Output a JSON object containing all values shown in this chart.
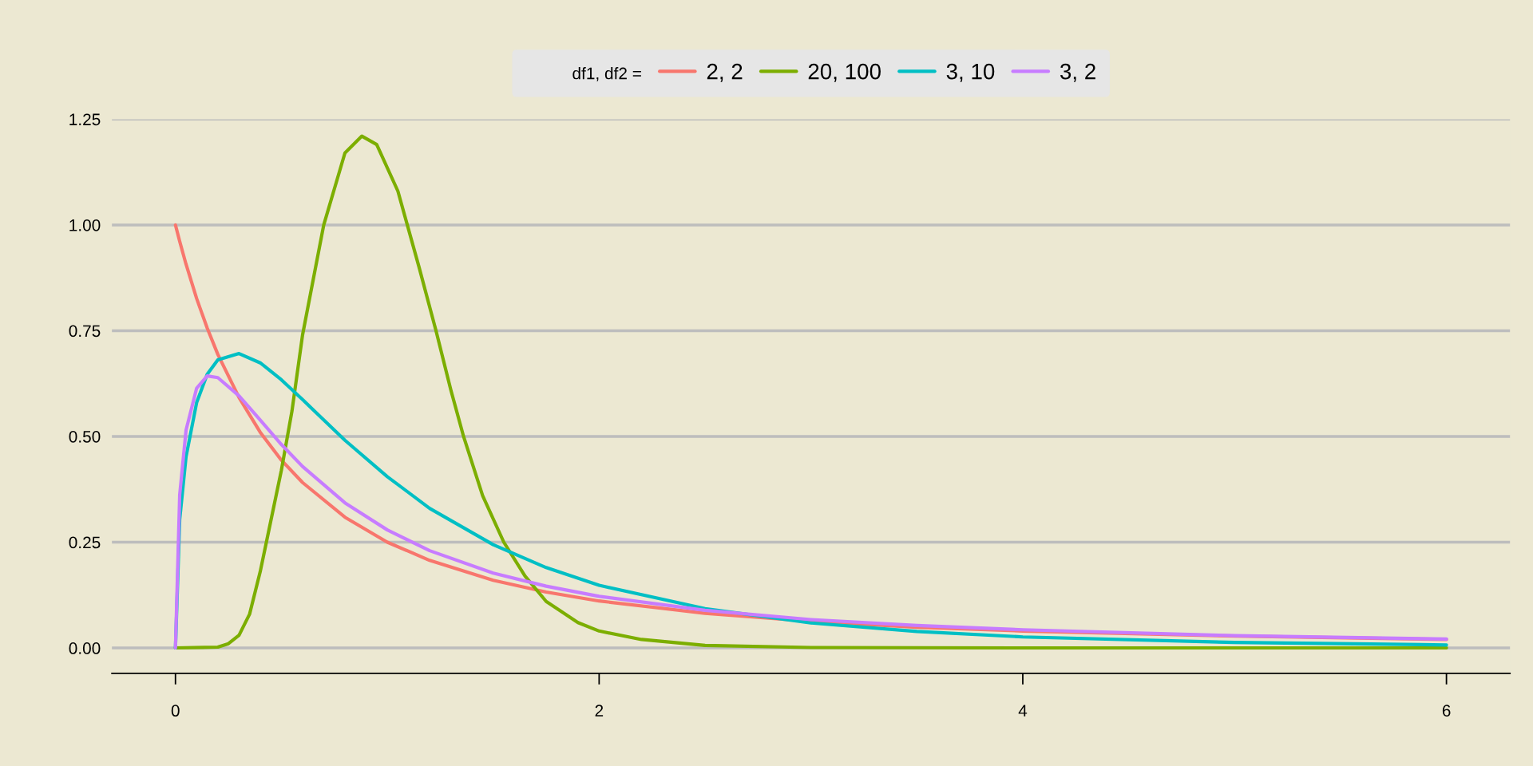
{
  "chart_data": {
    "type": "line",
    "legend_title": "df1, df2 =",
    "legend": "top",
    "grid": "y",
    "xlim": [
      -0.3,
      6.3
    ],
    "xticks": [
      0,
      2,
      4,
      6
    ],
    "ylim": [
      -0.06,
      1.25
    ],
    "yticks": [
      {
        "value": 0,
        "label": "0.00"
      },
      {
        "value": 0.25,
        "label": "0.25"
      },
      {
        "value": 0.5,
        "label": "0.50"
      },
      {
        "value": 0.75,
        "label": "0.75"
      },
      {
        "value": 1,
        "label": "1.00"
      },
      {
        "value": 1.25,
        "label": "1.25"
      }
    ],
    "x": [
      0,
      0.02,
      0.05,
      0.1,
      0.15,
      0.2,
      0.3,
      0.4,
      0.5,
      0.6,
      0.8,
      1,
      1.2,
      1.5,
      1.75,
      2,
      2.5,
      3,
      3.5,
      4,
      5,
      6
    ],
    "series": [
      {
        "name": "2, 2",
        "color": "#f8766d",
        "values": [
          1,
          0.961,
          0.907,
          0.826,
          0.756,
          0.694,
          0.592,
          0.51,
          0.444,
          0.391,
          0.309,
          0.25,
          0.207,
          0.16,
          0.132,
          0.111,
          0.082,
          0.063,
          0.049,
          0.04,
          0.028,
          0.02
        ]
      },
      {
        "name": "20, 100",
        "color": "#7cae00",
        "x": [
          0,
          0.2,
          0.25,
          0.3,
          0.35,
          0.4,
          0.45,
          0.5,
          0.55,
          0.6,
          0.7,
          0.8,
          0.88,
          0.95,
          1.05,
          1.15,
          1.23,
          1.3,
          1.36,
          1.45,
          1.55,
          1.65,
          1.75,
          1.9,
          2,
          2.2,
          2.5,
          3,
          4,
          6
        ],
        "values": [
          0,
          0.002,
          0.01,
          0.03,
          0.08,
          0.18,
          0.3,
          0.42,
          0.56,
          0.74,
          1.0,
          1.17,
          1.21,
          1.19,
          1.08,
          0.9,
          0.75,
          0.61,
          0.5,
          0.36,
          0.25,
          0.17,
          0.11,
          0.06,
          0.04,
          0.02,
          0.006,
          0.001,
          0,
          0
        ]
      },
      {
        "name": "3, 10",
        "color": "#00bfc4",
        "values": [
          0,
          0.303,
          0.452,
          0.58,
          0.647,
          0.681,
          0.696,
          0.674,
          0.634,
          0.587,
          0.491,
          0.405,
          0.33,
          0.244,
          0.19,
          0.148,
          0.093,
          0.059,
          0.039,
          0.026,
          0.013,
          0.007
        ]
      },
      {
        "name": "3, 2",
        "color": "#c77cff",
        "values": [
          0,
          0.362,
          0.515,
          0.614,
          0.643,
          0.639,
          0.596,
          0.539,
          0.481,
          0.429,
          0.343,
          0.279,
          0.23,
          0.177,
          0.146,
          0.122,
          0.089,
          0.067,
          0.053,
          0.043,
          0.029,
          0.021
        ]
      }
    ]
  }
}
